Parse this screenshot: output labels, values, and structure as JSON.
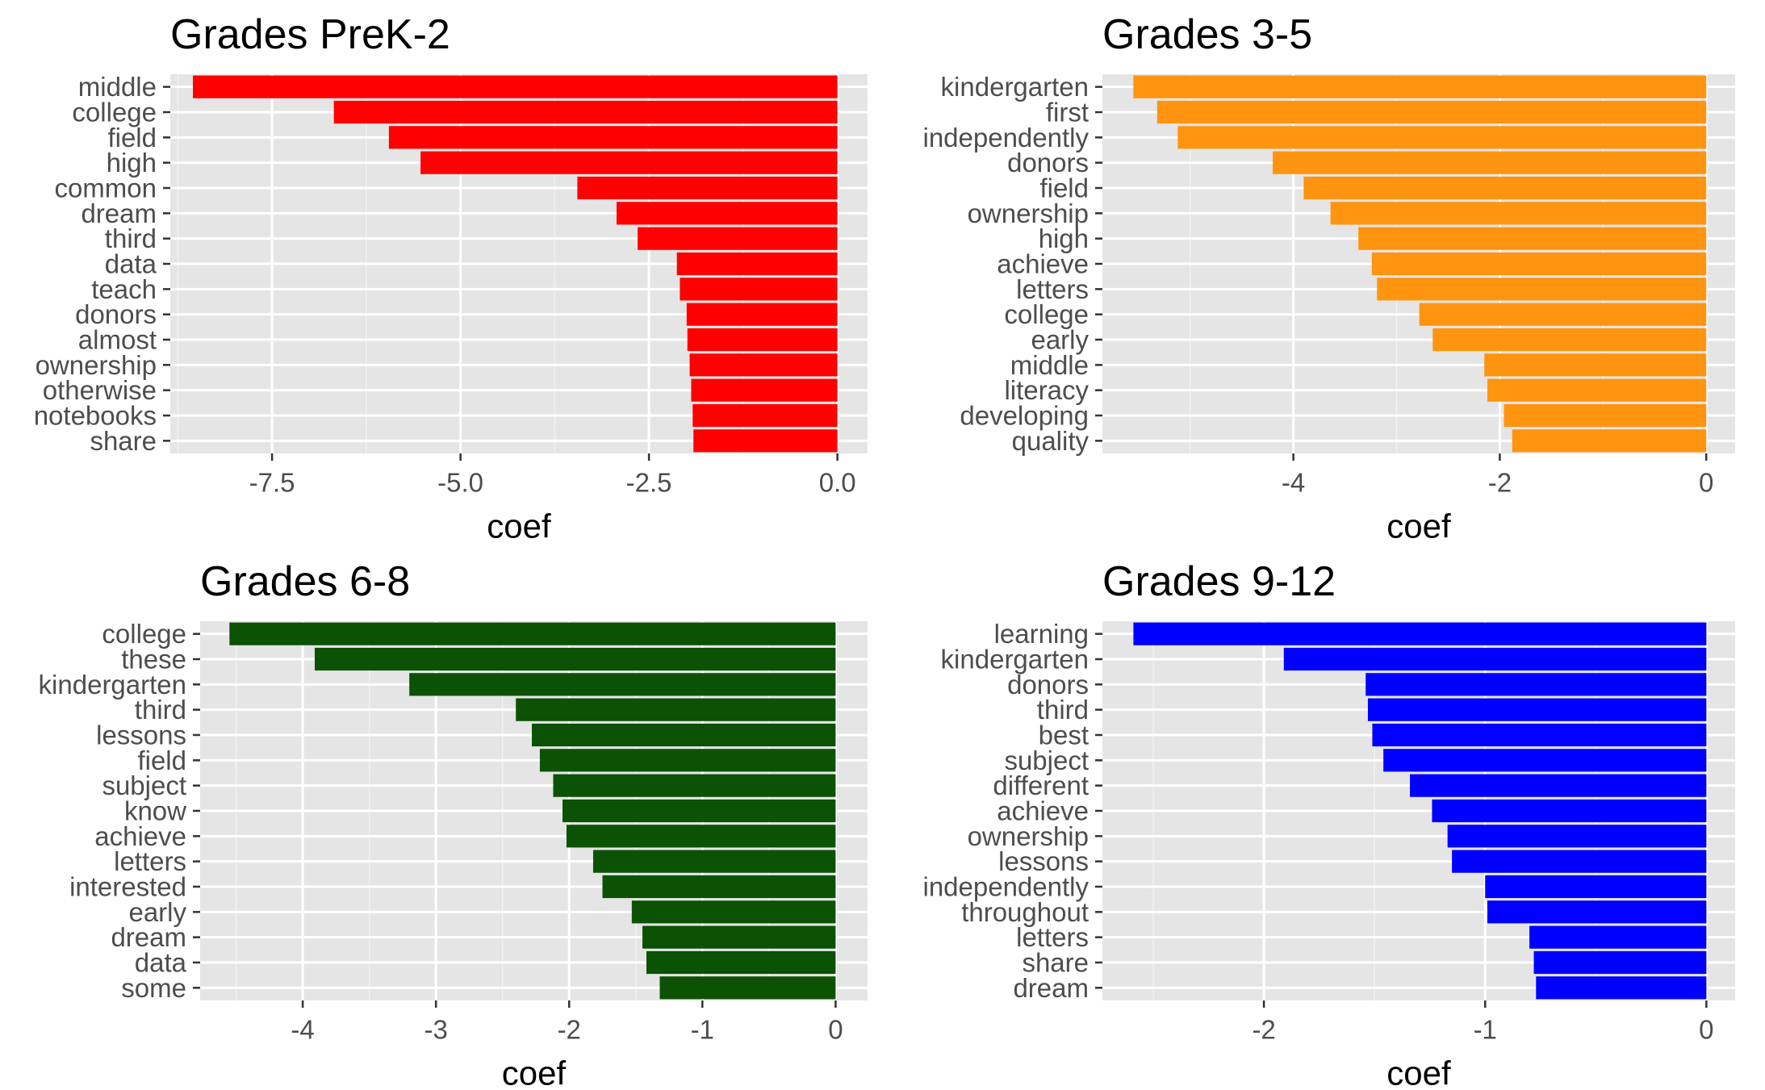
{
  "chart_data": [
    {
      "type": "bar",
      "orientation": "horizontal",
      "title": "Grades PreK-2",
      "xlabel": "coef",
      "ylabel": "",
      "color": "#ff0000",
      "xlim": [
        -8.85,
        0.4
      ],
      "xticks": [
        -7.5,
        -5.0,
        -2.5,
        0.0
      ],
      "xtick_labels": [
        "-7.5",
        "-5.0",
        "-2.5",
        "0.0"
      ],
      "categories": [
        "middle",
        "college",
        "field",
        "high",
        "common",
        "dream",
        "third",
        "data",
        "teach",
        "donors",
        "almost",
        "ownership",
        "otherwise",
        "notebooks",
        "share"
      ],
      "values": [
        -8.55,
        -6.68,
        -5.95,
        -5.53,
        -3.45,
        -2.93,
        -2.65,
        -2.13,
        -2.09,
        -2.0,
        -1.99,
        -1.96,
        -1.94,
        -1.92,
        -1.91
      ]
    },
    {
      "type": "bar",
      "orientation": "horizontal",
      "title": "Grades 3-5",
      "xlabel": "coef",
      "ylabel": "",
      "color": "#ff9410",
      "xlim": [
        -5.85,
        0.28
      ],
      "xticks": [
        -4,
        -2,
        0
      ],
      "xtick_labels": [
        "-4",
        "-2",
        "0"
      ],
      "categories": [
        "kindergarten",
        "first",
        "independently",
        "donors",
        "field",
        "ownership",
        "high",
        "achieve",
        "letters",
        "college",
        "early",
        "middle",
        "literacy",
        "developing",
        "quality"
      ],
      "values": [
        -5.55,
        -5.32,
        -5.12,
        -4.2,
        -3.9,
        -3.64,
        -3.37,
        -3.24,
        -3.19,
        -2.78,
        -2.65,
        -2.15,
        -2.12,
        -1.96,
        -1.88
      ]
    },
    {
      "type": "bar",
      "orientation": "horizontal",
      "title": "Grades 6-8",
      "xlabel": "coef",
      "ylabel": "",
      "color": "#0b5204",
      "xlim": [
        -4.77,
        0.24
      ],
      "xticks": [
        -4,
        -3,
        -2,
        -1,
        0
      ],
      "xtick_labels": [
        "-4",
        "-3",
        "-2",
        "-1",
        "0"
      ],
      "categories": [
        "college",
        "these",
        "kindergarten",
        "third",
        "lessons",
        "field",
        "subject",
        "know",
        "achieve",
        "letters",
        "interested",
        "early",
        "dream",
        "data",
        "some"
      ],
      "values": [
        -4.55,
        -3.91,
        -3.2,
        -2.4,
        -2.28,
        -2.22,
        -2.12,
        -2.05,
        -2.02,
        -1.82,
        -1.75,
        -1.53,
        -1.45,
        -1.42,
        -1.32
      ]
    },
    {
      "type": "bar",
      "orientation": "horizontal",
      "title": "Grades 9-12",
      "xlabel": "coef",
      "ylabel": "",
      "color": "#0000ff",
      "xlim": [
        -2.73,
        0.13
      ],
      "xticks": [
        -2,
        -1,
        0
      ],
      "xtick_labels": [
        "-2",
        "-1",
        "0"
      ],
      "categories": [
        "learning",
        "kindergarten",
        "donors",
        "third",
        "best",
        "subject",
        "different",
        "achieve",
        "ownership",
        "lessons",
        "independently",
        "throughout",
        "letters",
        "share",
        "dream"
      ],
      "values": [
        -2.59,
        -1.91,
        -1.54,
        -1.53,
        -1.51,
        -1.46,
        -1.34,
        -1.24,
        -1.17,
        -1.15,
        -1.0,
        -0.99,
        -0.8,
        -0.78,
        -0.77
      ]
    }
  ]
}
